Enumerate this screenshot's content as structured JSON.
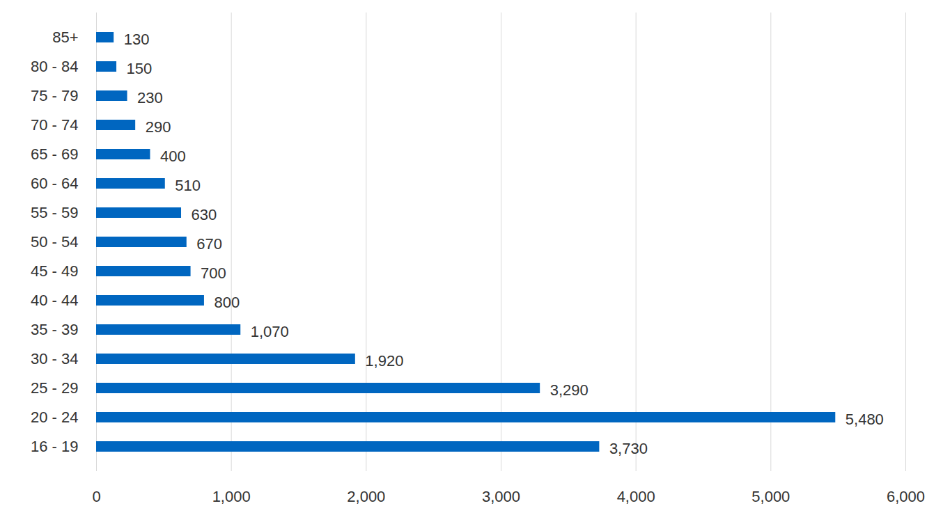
{
  "chart_data": {
    "type": "bar",
    "orientation": "horizontal",
    "categories": [
      "85+",
      "80 - 84",
      "75 - 79",
      "70 - 74",
      "65 - 69",
      "60 - 64",
      "55 - 59",
      "50 - 54",
      "45 - 49",
      "40 - 44",
      "35 - 39",
      "30 - 34",
      "25 - 29",
      "20 - 24",
      "16 - 19"
    ],
    "values": [
      130,
      150,
      230,
      290,
      400,
      510,
      630,
      670,
      700,
      800,
      1070,
      1920,
      3290,
      5480,
      3730
    ],
    "value_labels": [
      "130",
      "150",
      "230",
      "290",
      "400",
      "510",
      "630",
      "670",
      "700",
      "800",
      "1,070",
      "1,920",
      "3,290",
      "5,480",
      "3,730"
    ],
    "data_labels": true,
    "color": "#0066c0",
    "xlim": [
      0,
      6000
    ],
    "xticks": [
      0,
      {
        "value": 1000,
        "label": "1,000"
      },
      {
        "value": 2000,
        "label": "2,000"
      },
      {
        "value": 3000,
        "label": "3,000"
      },
      {
        "value": 4000,
        "label": "4,000"
      },
      {
        "value": 5000,
        "label": "5,000"
      },
      {
        "value": 6000,
        "label": "6,000"
      }
    ],
    "grid": true
  }
}
